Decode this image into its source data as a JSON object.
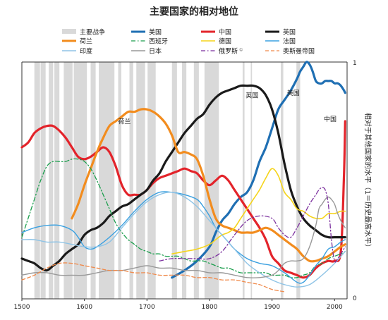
{
  "chart_data": {
    "type": "line",
    "title": "主要国家的相对地位",
    "ylabel": "相对于其他国家的水平（1＝历史最高水平）",
    "xlim": [
      1500,
      2020
    ],
    "ylim": [
      0,
      1
    ],
    "x_ticks": [
      "1500",
      "1600",
      "1700",
      "1800",
      "1900",
      "2000"
    ],
    "y_ticks": [
      "0",
      "1"
    ],
    "grid": false,
    "legend_position": "top",
    "wars_label": "主要战争",
    "war_color": "#d9d9d9",
    "wars": [
      [
        1520,
        1529
      ],
      [
        1530,
        1538
      ],
      [
        1543,
        1550
      ],
      [
        1552,
        1560
      ],
      [
        1567,
        1581
      ],
      [
        1583,
        1604
      ],
      [
        1610,
        1618
      ],
      [
        1623,
        1648
      ],
      [
        1654,
        1659
      ],
      [
        1672,
        1678
      ],
      [
        1683,
        1697
      ],
      [
        1701,
        1714
      ],
      [
        1740,
        1748
      ],
      [
        1756,
        1763
      ],
      [
        1775,
        1783
      ],
      [
        1792,
        1815
      ],
      [
        1853,
        1856
      ],
      [
        1866,
        1868
      ],
      [
        1914,
        1918
      ],
      [
        1939,
        1945
      ]
    ],
    "series": [
      {
        "name": "美国",
        "color": "#1f6fb3",
        "dash": "solid",
        "width": 3.2,
        "x": [
          1740,
          1760,
          1780,
          1800,
          1810,
          1820,
          1830,
          1840,
          1850,
          1860,
          1870,
          1880,
          1890,
          1900,
          1910,
          1920,
          1930,
          1940,
          1945,
          1950,
          1955,
          1960,
          1965,
          1970,
          1975,
          1980,
          1985,
          1990,
          1995,
          2000,
          2005,
          2010,
          2015,
          2017
        ],
        "y": [
          0.09,
          0.12,
          0.16,
          0.22,
          0.28,
          0.33,
          0.36,
          0.4,
          0.43,
          0.45,
          0.5,
          0.58,
          0.64,
          0.72,
          0.8,
          0.84,
          0.88,
          0.93,
          0.96,
          0.98,
          1.0,
          0.99,
          0.96,
          0.92,
          0.91,
          0.91,
          0.92,
          0.92,
          0.92,
          0.91,
          0.91,
          0.9,
          0.88,
          0.87
        ]
      },
      {
        "name": "中国",
        "color": "#e3242b",
        "dash": "solid",
        "width": 3.2,
        "x": [
          1500,
          1510,
          1520,
          1530,
          1540,
          1550,
          1560,
          1570,
          1580,
          1590,
          1600,
          1610,
          1620,
          1630,
          1640,
          1650,
          1660,
          1670,
          1680,
          1690,
          1700,
          1710,
          1720,
          1730,
          1740,
          1750,
          1760,
          1770,
          1780,
          1790,
          1800,
          1810,
          1820,
          1830,
          1840,
          1850,
          1860,
          1870,
          1880,
          1890,
          1900,
          1910,
          1920,
          1930,
          1940,
          1950,
          1960,
          1970,
          1980,
          1990,
          2000,
          2010,
          2015,
          2017
        ],
        "y": [
          0.64,
          0.66,
          0.7,
          0.72,
          0.73,
          0.73,
          0.71,
          0.68,
          0.64,
          0.6,
          0.59,
          0.6,
          0.62,
          0.64,
          0.62,
          0.56,
          0.48,
          0.44,
          0.44,
          0.44,
          0.46,
          0.49,
          0.51,
          0.52,
          0.53,
          0.54,
          0.55,
          0.54,
          0.53,
          0.5,
          0.48,
          0.5,
          0.52,
          0.5,
          0.46,
          0.42,
          0.38,
          0.34,
          0.3,
          0.25,
          0.18,
          0.15,
          0.12,
          0.11,
          0.1,
          0.09,
          0.1,
          0.13,
          0.15,
          0.16,
          0.16,
          0.2,
          0.52,
          0.75
        ]
      },
      {
        "name": "英国",
        "color": "#1a1a1a",
        "dash": "solid",
        "width": 3.2,
        "x": [
          1500,
          1510,
          1520,
          1530,
          1540,
          1550,
          1560,
          1570,
          1580,
          1590,
          1600,
          1610,
          1620,
          1630,
          1640,
          1650,
          1660,
          1670,
          1680,
          1690,
          1700,
          1710,
          1720,
          1730,
          1740,
          1750,
          1760,
          1770,
          1780,
          1790,
          1800,
          1810,
          1820,
          1830,
          1840,
          1850,
          1860,
          1870,
          1880,
          1890,
          1900,
          1910,
          1920,
          1930,
          1940,
          1950,
          1960,
          1970,
          1980,
          1990,
          2000,
          2010,
          2015,
          2017
        ],
        "y": [
          0.17,
          0.16,
          0.15,
          0.13,
          0.12,
          0.14,
          0.16,
          0.19,
          0.21,
          0.23,
          0.27,
          0.29,
          0.3,
          0.32,
          0.35,
          0.37,
          0.39,
          0.4,
          0.42,
          0.44,
          0.46,
          0.5,
          0.53,
          0.58,
          0.62,
          0.66,
          0.7,
          0.73,
          0.76,
          0.78,
          0.82,
          0.85,
          0.87,
          0.88,
          0.89,
          0.9,
          0.9,
          0.9,
          0.89,
          0.86,
          0.8,
          0.7,
          0.57,
          0.46,
          0.39,
          0.34,
          0.31,
          0.29,
          0.27,
          0.26,
          0.26,
          0.26,
          0.26,
          0.26
        ]
      },
      {
        "name": "荷兰",
        "color": "#f28c1e",
        "dash": "solid",
        "width": 3.2,
        "x": [
          1580,
          1590,
          1600,
          1610,
          1620,
          1630,
          1640,
          1650,
          1660,
          1670,
          1680,
          1690,
          1700,
          1710,
          1720,
          1730,
          1740,
          1750,
          1760,
          1770,
          1780,
          1790,
          1800,
          1810,
          1820,
          1830,
          1840,
          1850,
          1860,
          1870,
          1880,
          1890,
          1900,
          1910,
          1920,
          1930,
          1940,
          1950,
          1960,
          1970,
          1980,
          1990,
          2000,
          2010,
          2017
        ],
        "y": [
          0.34,
          0.4,
          0.48,
          0.55,
          0.62,
          0.68,
          0.73,
          0.75,
          0.77,
          0.79,
          0.79,
          0.8,
          0.8,
          0.79,
          0.77,
          0.74,
          0.69,
          0.62,
          0.62,
          0.61,
          0.59,
          0.52,
          0.42,
          0.34,
          0.31,
          0.3,
          0.29,
          0.28,
          0.28,
          0.28,
          0.29,
          0.3,
          0.29,
          0.27,
          0.25,
          0.23,
          0.21,
          0.18,
          0.16,
          0.16,
          0.17,
          0.18,
          0.2,
          0.22,
          0.23
        ]
      },
      {
        "name": "西班牙",
        "color": "#1a9e4c",
        "dash": "dashdot",
        "width": 1.3,
        "x": [
          1500,
          1510,
          1520,
          1530,
          1540,
          1550,
          1560,
          1570,
          1580,
          1590,
          1600,
          1610,
          1620,
          1630,
          1640,
          1650,
          1660,
          1670,
          1680,
          1690,
          1700,
          1710,
          1720,
          1730,
          1740,
          1750,
          1760,
          1770,
          1780,
          1790,
          1800,
          1810,
          1820,
          1830,
          1840,
          1850,
          1860,
          1870,
          1880,
          1890,
          1900,
          1910,
          1920,
          1930,
          1940,
          1950,
          1960,
          1970,
          1980,
          1990,
          2000,
          2010,
          2017
        ],
        "y": [
          0.26,
          0.34,
          0.42,
          0.5,
          0.56,
          0.58,
          0.58,
          0.58,
          0.59,
          0.59,
          0.58,
          0.55,
          0.5,
          0.44,
          0.38,
          0.32,
          0.28,
          0.25,
          0.23,
          0.21,
          0.2,
          0.19,
          0.19,
          0.18,
          0.18,
          0.18,
          0.17,
          0.16,
          0.16,
          0.16,
          0.15,
          0.14,
          0.13,
          0.13,
          0.12,
          0.11,
          0.11,
          0.11,
          0.11,
          0.11,
          0.1,
          0.1,
          0.1,
          0.09,
          0.09,
          0.1,
          0.11,
          0.14,
          0.15,
          0.17,
          0.18,
          0.19,
          0.2
        ]
      },
      {
        "name": "德国",
        "color": "#f5d41a",
        "dash": "solid",
        "width": 1.6,
        "x": [
          1740,
          1760,
          1780,
          1800,
          1810,
          1820,
          1830,
          1840,
          1850,
          1860,
          1870,
          1880,
          1890,
          1900,
          1910,
          1920,
          1930,
          1940,
          1950,
          1960,
          1970,
          1980,
          1990,
          2000,
          2010,
          2017
        ],
        "y": [
          0.19,
          0.2,
          0.21,
          0.23,
          0.25,
          0.27,
          0.28,
          0.3,
          0.34,
          0.38,
          0.42,
          0.46,
          0.51,
          0.55,
          0.52,
          0.45,
          0.42,
          0.38,
          0.37,
          0.35,
          0.34,
          0.34,
          0.36,
          0.36,
          0.37,
          0.37
        ]
      },
      {
        "name": "法国",
        "color": "#3aa0e0",
        "dash": "solid",
        "width": 1.4,
        "x": [
          1500,
          1520,
          1540,
          1560,
          1580,
          1590,
          1600,
          1610,
          1620,
          1640,
          1660,
          1680,
          1700,
          1720,
          1740,
          1760,
          1780,
          1790,
          1800,
          1810,
          1820,
          1830,
          1840,
          1860,
          1880,
          1900,
          1920,
          1940,
          1950,
          1960,
          1970,
          1980,
          1990,
          2000,
          2010,
          2017
        ],
        "y": [
          0.28,
          0.3,
          0.31,
          0.31,
          0.29,
          0.26,
          0.22,
          0.21,
          0.22,
          0.26,
          0.31,
          0.37,
          0.42,
          0.45,
          0.45,
          0.44,
          0.42,
          0.39,
          0.35,
          0.3,
          0.27,
          0.24,
          0.21,
          0.17,
          0.15,
          0.14,
          0.11,
          0.07,
          0.07,
          0.1,
          0.14,
          0.17,
          0.21,
          0.22,
          0.24,
          0.25
        ]
      },
      {
        "name": "印度",
        "color": "#8fc4e6",
        "dash": "solid",
        "width": 1.4,
        "x": [
          1500,
          1520,
          1540,
          1560,
          1580,
          1600,
          1620,
          1640,
          1660,
          1680,
          1700,
          1720,
          1740,
          1760,
          1780,
          1800,
          1820,
          1840,
          1860,
          1880,
          1900,
          1920,
          1940,
          1960,
          1980,
          2000,
          2017
        ],
        "y": [
          0.25,
          0.25,
          0.24,
          0.24,
          0.23,
          0.22,
          0.22,
          0.24,
          0.3,
          0.36,
          0.41,
          0.44,
          0.45,
          0.43,
          0.39,
          0.33,
          0.27,
          0.21,
          0.15,
          0.11,
          0.08,
          0.06,
          0.05,
          0.06,
          0.1,
          0.15,
          0.2
        ]
      },
      {
        "name": "日本",
        "color": "#999999",
        "dash": "solid",
        "width": 1.4,
        "x": [
          1500,
          1520,
          1540,
          1560,
          1580,
          1600,
          1620,
          1640,
          1660,
          1680,
          1700,
          1720,
          1740,
          1760,
          1780,
          1800,
          1820,
          1840,
          1860,
          1880,
          1900,
          1910,
          1920,
          1930,
          1940,
          1950,
          1960,
          1970,
          1975,
          1980,
          1985,
          1990,
          1995,
          2000,
          2005,
          2010,
          2017
        ],
        "y": [
          0.1,
          0.11,
          0.11,
          0.1,
          0.1,
          0.1,
          0.11,
          0.12,
          0.12,
          0.13,
          0.14,
          0.13,
          0.13,
          0.12,
          0.12,
          0.11,
          0.11,
          0.1,
          0.09,
          0.09,
          0.1,
          0.12,
          0.15,
          0.16,
          0.16,
          0.17,
          0.22,
          0.31,
          0.38,
          0.4,
          0.42,
          0.43,
          0.42,
          0.4,
          0.36,
          0.33,
          0.3
        ]
      },
      {
        "name": "俄罗斯",
        "color": "#7b2f9e",
        "dash": "dashdot",
        "width": 1.3,
        "x": [
          1720,
          1740,
          1760,
          1780,
          1800,
          1820,
          1840,
          1860,
          1880,
          1900,
          1910,
          1920,
          1930,
          1940,
          1950,
          1960,
          1970,
          1975,
          1980,
          1985,
          1990,
          1995,
          2000,
          2005,
          2010,
          2017
        ],
        "y": [
          0.16,
          0.17,
          0.17,
          0.17,
          0.17,
          0.2,
          0.27,
          0.33,
          0.35,
          0.34,
          0.3,
          0.27,
          0.26,
          0.3,
          0.35,
          0.4,
          0.44,
          0.46,
          0.47,
          0.46,
          0.4,
          0.25,
          0.16,
          0.17,
          0.19,
          0.22
        ]
      },
      {
        "name": "奥斯曼帝国",
        "color": "#f08a4b",
        "dash": "dashed",
        "width": 1.3,
        "x": [
          1500,
          1520,
          1540,
          1560,
          1580,
          1600,
          1620,
          1640,
          1660,
          1680,
          1700,
          1720,
          1740,
          1760,
          1780,
          1800,
          1820,
          1840,
          1860,
          1880,
          1900,
          1920
        ],
        "y": [
          0.08,
          0.1,
          0.13,
          0.15,
          0.15,
          0.14,
          0.13,
          0.12,
          0.12,
          0.11,
          0.11,
          0.1,
          0.1,
          0.1,
          0.09,
          0.09,
          0.08,
          0.08,
          0.07,
          0.06,
          0.04,
          0.03
        ]
      }
    ],
    "annotations": [
      {
        "text": "荷兰",
        "x": 1664,
        "y": 0.74
      },
      {
        "text": "英国",
        "x": 1868,
        "y": 0.85
      },
      {
        "text": "美国",
        "x": 1934,
        "y": 0.86
      },
      {
        "text": "中国",
        "x": 1993,
        "y": 0.75
      }
    ],
    "footnote_marker": "①"
  }
}
